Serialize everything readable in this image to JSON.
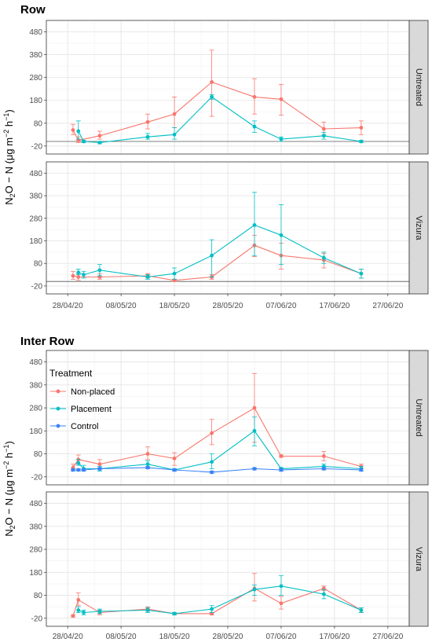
{
  "chart_data": [
    {
      "type": "line",
      "title": "Row",
      "ylabel": {
        "base": "N",
        "sub1": "2",
        "mid": "O − N (μg m",
        "sup1": "−2",
        "mid2": " h",
        "sup2": "−1",
        "end": ")"
      },
      "y_ticks": [
        -20,
        80,
        180,
        280,
        380,
        480
      ],
      "ylim": [
        -55,
        530
      ],
      "x_ticks": [
        "2020-04-28",
        "2020-05-08",
        "2020-05-18",
        "2020-05-28",
        "2020-06-07",
        "2020-06-17",
        "2020-06-27"
      ],
      "x_tick_labels": [
        "28/04/20",
        "08/05/20",
        "18/05/20",
        "28/05/20",
        "07/06/20",
        "17/06/20",
        "27/06/20"
      ],
      "xlim": [
        "2020-04-24",
        "2020-07-01"
      ],
      "grid": true,
      "legend": "none",
      "facets": [
        {
          "label": "Untreated",
          "hline": 0,
          "series": [
            {
              "name": "Non-placed",
              "color": "#F8766D",
              "points": [
                {
                  "x": "2020-04-29",
                  "y": 50,
                  "lo": 30,
                  "hi": 75
                },
                {
                  "x": "2020-04-30",
                  "y": 5,
                  "lo": -5,
                  "hi": 20
                },
                {
                  "x": "2020-05-04",
                  "y": 25,
                  "lo": 10,
                  "hi": 45
                },
                {
                  "x": "2020-05-13",
                  "y": 85,
                  "lo": 55,
                  "hi": 120
                },
                {
                  "x": "2020-05-18",
                  "y": 120,
                  "lo": 60,
                  "hi": 195
                },
                {
                  "x": "2020-05-25",
                  "y": 260,
                  "lo": 110,
                  "hi": 400
                },
                {
                  "x": "2020-06-02",
                  "y": 195,
                  "lo": 120,
                  "hi": 275
                },
                {
                  "x": "2020-06-07",
                  "y": 185,
                  "lo": 115,
                  "hi": 250
                },
                {
                  "x": "2020-06-15",
                  "y": 55,
                  "lo": 30,
                  "hi": 85
                },
                {
                  "x": "2020-06-22",
                  "y": 60,
                  "lo": 30,
                  "hi": 90
                }
              ]
            },
            {
              "name": "Placement",
              "color": "#00BFC4",
              "points": [
                {
                  "x": "2020-04-30",
                  "y": 45,
                  "lo": 10,
                  "hi": 90
                },
                {
                  "x": "2020-05-01",
                  "y": 0,
                  "lo": -5,
                  "hi": 5
                },
                {
                  "x": "2020-05-04",
                  "y": -5,
                  "lo": -10,
                  "hi": 0
                },
                {
                  "x": "2020-05-13",
                  "y": 20,
                  "lo": 10,
                  "hi": 35
                },
                {
                  "x": "2020-05-18",
                  "y": 30,
                  "lo": 10,
                  "hi": 60
                },
                {
                  "x": "2020-05-25",
                  "y": 195,
                  "lo": 185,
                  "hi": 205
                },
                {
                  "x": "2020-06-02",
                  "y": 65,
                  "lo": 40,
                  "hi": 90
                },
                {
                  "x": "2020-06-07",
                  "y": 10,
                  "lo": 0,
                  "hi": 20
                },
                {
                  "x": "2020-06-15",
                  "y": 25,
                  "lo": 10,
                  "hi": 40
                },
                {
                  "x": "2020-06-22",
                  "y": 0,
                  "lo": -5,
                  "hi": 5
                }
              ]
            }
          ]
        },
        {
          "label": "Vizura",
          "hline": 0,
          "series": [
            {
              "name": "Non-placed",
              "color": "#F8766D",
              "points": [
                {
                  "x": "2020-04-29",
                  "y": 25,
                  "lo": 10,
                  "hi": 45
                },
                {
                  "x": "2020-04-30",
                  "y": 20,
                  "lo": 5,
                  "hi": 35
                },
                {
                  "x": "2020-05-04",
                  "y": 20,
                  "lo": 10,
                  "hi": 35
                },
                {
                  "x": "2020-05-13",
                  "y": 25,
                  "lo": 15,
                  "hi": 35
                },
                {
                  "x": "2020-05-18",
                  "y": 5,
                  "lo": 0,
                  "hi": 10
                },
                {
                  "x": "2020-05-25",
                  "y": 20,
                  "lo": 10,
                  "hi": 30
                },
                {
                  "x": "2020-06-02",
                  "y": 160,
                  "lo": 110,
                  "hi": 205
                },
                {
                  "x": "2020-06-07",
                  "y": 115,
                  "lo": 55,
                  "hi": 170
                },
                {
                  "x": "2020-06-15",
                  "y": 95,
                  "lo": 60,
                  "hi": 125
                },
                {
                  "x": "2020-06-22",
                  "y": 35,
                  "lo": 15,
                  "hi": 55
                }
              ]
            },
            {
              "name": "Placement",
              "color": "#00BFC4",
              "points": [
                {
                  "x": "2020-04-30",
                  "y": 40,
                  "lo": 30,
                  "hi": 55
                },
                {
                  "x": "2020-05-01",
                  "y": 30,
                  "lo": 15,
                  "hi": 45
                },
                {
                  "x": "2020-05-04",
                  "y": 50,
                  "lo": 25,
                  "hi": 75
                },
                {
                  "x": "2020-05-13",
                  "y": 20,
                  "lo": 10,
                  "hi": 30
                },
                {
                  "x": "2020-05-18",
                  "y": 35,
                  "lo": 10,
                  "hi": 60
                },
                {
                  "x": "2020-05-25",
                  "y": 115,
                  "lo": 20,
                  "hi": 185
                },
                {
                  "x": "2020-06-02",
                  "y": 250,
                  "lo": 115,
                  "hi": 395
                },
                {
                  "x": "2020-06-07",
                  "y": 205,
                  "lo": 75,
                  "hi": 340
                },
                {
                  "x": "2020-06-15",
                  "y": 105,
                  "lo": 80,
                  "hi": 130
                },
                {
                  "x": "2020-06-22",
                  "y": 35,
                  "lo": 15,
                  "hi": 55
                }
              ]
            }
          ]
        }
      ]
    },
    {
      "type": "line",
      "title": "Inter Row",
      "ylabel": {
        "base": "N",
        "sub1": "2",
        "mid": "O − N (μg m",
        "sup1": "−2",
        "mid2": " h",
        "sup2": "−1",
        "end": ")"
      },
      "y_ticks": [
        -20,
        80,
        180,
        280,
        380,
        480
      ],
      "ylim": [
        -55,
        530
      ],
      "x_ticks": [
        "2020-04-28",
        "2020-05-08",
        "2020-05-18",
        "2020-05-28",
        "2020-06-07",
        "2020-06-17",
        "2020-06-27"
      ],
      "x_tick_labels": [
        "28/04/20",
        "08/05/20",
        "18/05/20",
        "28/05/20",
        "07/06/20",
        "17/06/20",
        "27/06/20"
      ],
      "xlim": [
        "2020-04-24",
        "2020-07-01"
      ],
      "grid": true,
      "legend": {
        "title": "Treatment",
        "position": "top-left inside",
        "items": [
          "Non-placed",
          "Placement",
          "Control"
        ]
      },
      "facets": [
        {
          "label": "Untreated",
          "series": [
            {
              "name": "Non-placed",
              "color": "#F8766D",
              "points": [
                {
                  "x": "2020-04-29",
                  "y": 20,
                  "lo": 10,
                  "hi": 35
                },
                {
                  "x": "2020-04-30",
                  "y": 55,
                  "lo": 35,
                  "hi": 75
                },
                {
                  "x": "2020-05-04",
                  "y": 35,
                  "lo": 20,
                  "hi": 55
                },
                {
                  "x": "2020-05-13",
                  "y": 80,
                  "lo": 55,
                  "hi": 110
                },
                {
                  "x": "2020-05-18",
                  "y": 60,
                  "lo": 30,
                  "hi": 85
                },
                {
                  "x": "2020-05-25",
                  "y": 170,
                  "lo": 120,
                  "hi": 230
                },
                {
                  "x": "2020-06-02",
                  "y": 280,
                  "lo": 130,
                  "hi": 430
                },
                {
                  "x": "2020-06-07",
                  "y": 70,
                  "lo": 65,
                  "hi": 75
                },
                {
                  "x": "2020-06-15",
                  "y": 70,
                  "lo": 50,
                  "hi": 90
                },
                {
                  "x": "2020-06-22",
                  "y": 25,
                  "lo": 15,
                  "hi": 35
                }
              ]
            },
            {
              "name": "Placement",
              "color": "#00BFC4",
              "points": [
                {
                  "x": "2020-04-30",
                  "y": 40,
                  "lo": 30,
                  "hi": 55
                },
                {
                  "x": "2020-05-01",
                  "y": 15,
                  "lo": 5,
                  "hi": 30
                },
                {
                  "x": "2020-05-04",
                  "y": 15,
                  "lo": 5,
                  "hi": 25
                },
                {
                  "x": "2020-05-13",
                  "y": 35,
                  "lo": 20,
                  "hi": 50
                },
                {
                  "x": "2020-05-18",
                  "y": 10,
                  "lo": 5,
                  "hi": 15
                },
                {
                  "x": "2020-05-25",
                  "y": 45,
                  "lo": 15,
                  "hi": 80
                },
                {
                  "x": "2020-06-02",
                  "y": 180,
                  "lo": 115,
                  "hi": 240
                },
                {
                  "x": "2020-06-07",
                  "y": 15,
                  "lo": 5,
                  "hi": 20
                },
                {
                  "x": "2020-06-15",
                  "y": 25,
                  "lo": 15,
                  "hi": 35
                },
                {
                  "x": "2020-06-22",
                  "y": 15,
                  "lo": 5,
                  "hi": 25
                }
              ]
            },
            {
              "name": "Control",
              "color": "#3B82F6",
              "points": [
                {
                  "x": "2020-04-29",
                  "y": 10,
                  "lo": 5,
                  "hi": 15
                },
                {
                  "x": "2020-04-30",
                  "y": 10,
                  "lo": 5,
                  "hi": 15
                },
                {
                  "x": "2020-05-01",
                  "y": 10,
                  "lo": 5,
                  "hi": 15
                },
                {
                  "x": "2020-05-04",
                  "y": 15,
                  "lo": 10,
                  "hi": 20
                },
                {
                  "x": "2020-05-13",
                  "y": 20,
                  "lo": 15,
                  "hi": 25
                },
                {
                  "x": "2020-05-18",
                  "y": 10,
                  "lo": 5,
                  "hi": 15
                },
                {
                  "x": "2020-05-25",
                  "y": 0,
                  "lo": -5,
                  "hi": 5
                },
                {
                  "x": "2020-06-02",
                  "y": 15,
                  "lo": 10,
                  "hi": 20
                },
                {
                  "x": "2020-06-07",
                  "y": 10,
                  "lo": 5,
                  "hi": 15
                },
                {
                  "x": "2020-06-15",
                  "y": 15,
                  "lo": 10,
                  "hi": 20
                },
                {
                  "x": "2020-06-22",
                  "y": 10,
                  "lo": 5,
                  "hi": 15
                }
              ]
            }
          ]
        },
        {
          "label": "Vizura",
          "series": [
            {
              "name": "Non-placed",
              "color": "#F8766D",
              "points": [
                {
                  "x": "2020-04-29",
                  "y": -10,
                  "lo": -15,
                  "hi": -5
                },
                {
                  "x": "2020-04-30",
                  "y": 60,
                  "lo": 35,
                  "hi": 90
                },
                {
                  "x": "2020-05-04",
                  "y": 5,
                  "lo": -5,
                  "hi": 15
                },
                {
                  "x": "2020-05-13",
                  "y": 20,
                  "lo": 10,
                  "hi": 30
                },
                {
                  "x": "2020-05-18",
                  "y": 0,
                  "lo": -5,
                  "hi": 5
                },
                {
                  "x": "2020-05-25",
                  "y": 0,
                  "lo": -5,
                  "hi": 5
                },
                {
                  "x": "2020-06-02",
                  "y": 110,
                  "lo": 55,
                  "hi": 175
                },
                {
                  "x": "2020-06-07",
                  "y": 45,
                  "lo": 20,
                  "hi": 75
                },
                {
                  "x": "2020-06-15",
                  "y": 110,
                  "lo": 100,
                  "hi": 120
                },
                {
                  "x": "2020-06-22",
                  "y": 15,
                  "lo": 5,
                  "hi": 25
                }
              ]
            },
            {
              "name": "Placement",
              "color": "#00BFC4",
              "points": [
                {
                  "x": "2020-04-30",
                  "y": 15,
                  "lo": 5,
                  "hi": 30
                },
                {
                  "x": "2020-05-01",
                  "y": 5,
                  "lo": -5,
                  "hi": 15
                },
                {
                  "x": "2020-05-04",
                  "y": 10,
                  "lo": 0,
                  "hi": 20
                },
                {
                  "x": "2020-05-13",
                  "y": 15,
                  "lo": 5,
                  "hi": 25
                },
                {
                  "x": "2020-05-18",
                  "y": 0,
                  "lo": -5,
                  "hi": 5
                },
                {
                  "x": "2020-05-25",
                  "y": 20,
                  "lo": 5,
                  "hi": 35
                },
                {
                  "x": "2020-06-02",
                  "y": 105,
                  "lo": 80,
                  "hi": 125
                },
                {
                  "x": "2020-06-07",
                  "y": 120,
                  "lo": 80,
                  "hi": 165
                },
                {
                  "x": "2020-06-15",
                  "y": 85,
                  "lo": 65,
                  "hi": 105
                },
                {
                  "x": "2020-06-22",
                  "y": 15,
                  "lo": 5,
                  "hi": 25
                }
              ]
            }
          ]
        }
      ]
    }
  ]
}
